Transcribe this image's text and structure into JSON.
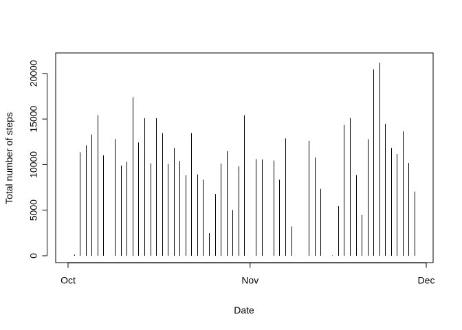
{
  "chart_data": {
    "type": "bar",
    "title": "",
    "xlabel": "Date",
    "ylabel": "Total number of steps",
    "ylim": [
      0,
      21194
    ],
    "yticks": [
      0,
      5000,
      10000,
      15000,
      20000
    ],
    "yticklabels": [
      "0",
      "5000",
      "10000",
      "15000",
      "20000"
    ],
    "xlim": [
      "2012-09-29",
      "2012-12-03"
    ],
    "xticks": [
      "2012-10-01",
      "2012-11-01",
      "2012-12-01"
    ],
    "xticklabels": [
      "Oct",
      "Nov",
      "Dec"
    ],
    "grid": false,
    "legend": "none",
    "x": [
      "2012-10-01",
      "2012-10-02",
      "2012-10-03",
      "2012-10-04",
      "2012-10-05",
      "2012-10-06",
      "2012-10-07",
      "2012-10-08",
      "2012-10-09",
      "2012-10-10",
      "2012-10-11",
      "2012-10-12",
      "2012-10-13",
      "2012-10-14",
      "2012-10-15",
      "2012-10-16",
      "2012-10-17",
      "2012-10-18",
      "2012-10-19",
      "2012-10-20",
      "2012-10-21",
      "2012-10-22",
      "2012-10-23",
      "2012-10-24",
      "2012-10-25",
      "2012-10-26",
      "2012-10-27",
      "2012-10-28",
      "2012-10-29",
      "2012-10-30",
      "2012-10-31",
      "2012-11-01",
      "2012-11-02",
      "2012-11-03",
      "2012-11-04",
      "2012-11-05",
      "2012-11-06",
      "2012-11-07",
      "2012-11-08",
      "2012-11-09",
      "2012-11-10",
      "2012-11-11",
      "2012-11-12",
      "2012-11-13",
      "2012-11-14",
      "2012-11-15",
      "2012-11-16",
      "2012-11-17",
      "2012-11-18",
      "2012-11-19",
      "2012-11-20",
      "2012-11-21",
      "2012-11-22",
      "2012-11-23",
      "2012-11-24",
      "2012-11-25",
      "2012-11-26",
      "2012-11-27",
      "2012-11-28",
      "2012-11-29"
    ],
    "values": [
      0,
      126,
      11352,
      12116,
      13294,
      15420,
      11015,
      0,
      12811,
      9900,
      10304,
      17382,
      12426,
      15098,
      10139,
      15084,
      13452,
      10056,
      11829,
      10395,
      8821,
      13460,
      8918,
      8355,
      2492,
      6778,
      10119,
      11458,
      5018,
      9819,
      15414,
      0,
      10600,
      10571,
      0,
      10439,
      8334,
      12883,
      3219,
      0,
      0,
      12608,
      10765,
      7336,
      0,
      41,
      5441,
      14339,
      15110,
      8841,
      4472,
      12787,
      20427,
      21194,
      14478,
      11834,
      11162,
      13646,
      10183,
      7047
    ]
  }
}
